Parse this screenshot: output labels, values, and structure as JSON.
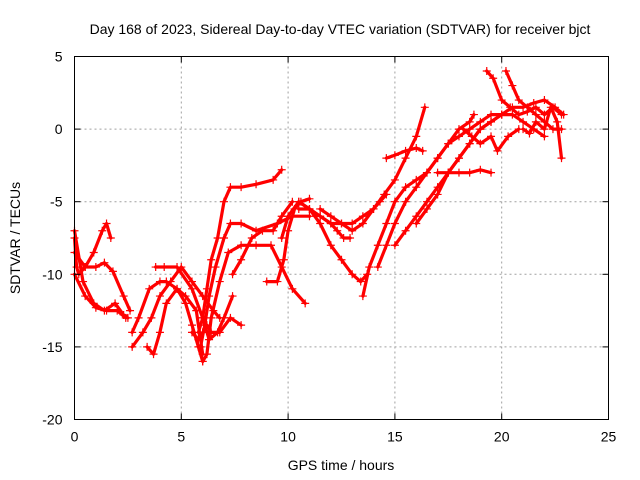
{
  "chart_data": {
    "type": "scatter",
    "title": "Day 168 of 2023, Sidereal Day-to-day VTEC variation (SDTVAR) for receiver bjct",
    "xlabel": "GPS time / hours",
    "ylabel": "SDTVAR / TECUs",
    "xlim": [
      0,
      25
    ],
    "ylim": [
      -20,
      5
    ],
    "xticks": [
      0,
      5,
      10,
      15,
      20,
      25
    ],
    "yticks": [
      5,
      0,
      -5,
      -10,
      -15,
      -20
    ],
    "xtick_labels": [
      "0",
      "5",
      "10",
      "15",
      "20",
      "25"
    ],
    "ytick_labels": [
      "5",
      "0",
      "-5",
      "-10",
      "-15",
      "-20"
    ],
    "grid": true,
    "legend": "none",
    "marker": "plus",
    "color": "#ff0000",
    "series": [
      {
        "x": [
          0.0,
          0.4,
          0.9,
          1.4,
          1.9,
          2.3,
          2.5
        ],
        "y": [
          -7,
          -10.5,
          -12,
          -12.5,
          -12,
          -12.8,
          -13
        ]
      },
      {
        "x": [
          0.0,
          0.5,
          1.0,
          1.4,
          1.8,
          2.3,
          2.6
        ],
        "y": [
          -8.5,
          -9.5,
          -9.5,
          -9.2,
          -9.8,
          -11.5,
          -12.5
        ]
      },
      {
        "x": [
          0.0,
          0.1,
          0.2,
          0.5,
          0.9,
          1.3,
          1.5,
          1.7
        ],
        "y": [
          -7.5,
          -9.5,
          -10,
          -9.5,
          -8.5,
          -7,
          -6.5,
          -7.5
        ]
      },
      {
        "x": [
          0.0,
          0.5,
          1.0,
          1.5,
          2.0,
          2.4
        ],
        "y": [
          -10,
          -11.5,
          -12.3,
          -12.5,
          -12.5,
          -13
        ]
      },
      {
        "x": [
          2.7,
          3.2,
          3.6,
          4.0,
          4.5,
          5.0,
          5.5,
          6.0,
          6.5,
          6.8
        ],
        "y": [
          -15,
          -14,
          -13,
          -11.5,
          -10.5,
          -9.5,
          -10.5,
          -11.5,
          -12.5,
          -13
        ]
      },
      {
        "x": [
          2.7,
          3.0,
          3.5,
          4.0,
          4.3,
          4.8,
          5.2,
          5.5,
          5.8,
          6.0
        ],
        "y": [
          -14,
          -13,
          -11,
          -10.5,
          -10.5,
          -11,
          -12,
          -13.5,
          -15,
          -16
        ]
      },
      {
        "x": [
          3.4,
          3.7,
          4.0,
          4.3,
          4.8,
          5.2,
          5.7,
          6.0
        ],
        "y": [
          -15,
          -15.5,
          -14,
          -12,
          -11,
          -11.5,
          -12.5,
          -15.5
        ]
      },
      {
        "x": [
          3.8,
          4.2,
          4.8,
          5.5,
          6.0,
          6.3,
          6.7,
          7.0,
          7.4
        ],
        "y": [
          -9.5,
          -9.5,
          -9.5,
          -11,
          -13,
          -14.5,
          -14,
          -13,
          -11.5
        ]
      },
      {
        "x": [
          5.5,
          5.8,
          6.0,
          6.2,
          6.4,
          6.8,
          7.3,
          7.8
        ],
        "y": [
          -14,
          -14.5,
          -14,
          -13.5,
          -14,
          -14,
          -13,
          -13.5
        ]
      },
      {
        "x": [
          5.8,
          6.0,
          6.2,
          6.4,
          6.7,
          7.0,
          7.3,
          7.8,
          8.5,
          9.3,
          9.7
        ],
        "y": [
          -14,
          -13,
          -11,
          -9,
          -7.5,
          -5,
          -4,
          -4,
          -3.8,
          -3.5,
          -2.8
        ]
      },
      {
        "x": [
          5.9,
          6.1,
          6.3,
          6.6,
          7.0,
          7.3,
          7.8,
          8.5,
          9.5,
          10.2,
          11.0
        ],
        "y": [
          -15,
          -13.5,
          -11.5,
          -9.5,
          -7.5,
          -6.5,
          -6.5,
          -7,
          -6.5,
          -6,
          -6
        ]
      },
      {
        "x": [
          6.0,
          6.2,
          6.4,
          6.8,
          7.2,
          7.8,
          8.5,
          9.2,
          9.7,
          10.2,
          10.8
        ],
        "y": [
          -16,
          -15.5,
          -13,
          -10.5,
          -8.5,
          -8,
          -8,
          -8,
          -9.5,
          -11,
          -12
        ]
      },
      {
        "x": [
          7.4,
          7.8,
          8.3,
          8.8,
          9.3,
          9.7,
          10.2
        ],
        "y": [
          -10,
          -9,
          -7.5,
          -7,
          -7,
          -6,
          -5
        ]
      },
      {
        "x": [
          9.0,
          9.5,
          9.8,
          10.0,
          10.3,
          10.6,
          11.0
        ],
        "y": [
          -10.5,
          -10.5,
          -9,
          -7,
          -5.5,
          -5,
          -4.8
        ]
      },
      {
        "x": [
          9.7,
          10.0,
          10.5,
          11.0,
          11.5,
          12.0,
          12.3,
          12.6,
          12.9
        ],
        "y": [
          -7.5,
          -6,
          -5,
          -5.5,
          -6,
          -6.5,
          -7,
          -7.5,
          -7.5
        ]
      },
      {
        "x": [
          10.5,
          11.0,
          11.5,
          12.0,
          12.5,
          13.0,
          13.4,
          13.7
        ],
        "y": [
          -5.5,
          -5.5,
          -6.5,
          -8,
          -9,
          -10,
          -10.5,
          -10
        ]
      },
      {
        "x": [
          10.5,
          11.0,
          11.5,
          12.0,
          12.5,
          13.0,
          13.5,
          14.0,
          14.3,
          14.6
        ],
        "y": [
          -5,
          -5.5,
          -6,
          -6.5,
          -6.5,
          -6.5,
          -6,
          -5.5,
          -5,
          -4.5
        ]
      },
      {
        "x": [
          11.5,
          12.0,
          12.5,
          13.0,
          13.5,
          14.0,
          14.5,
          15.0,
          15.5,
          16.0,
          16.4
        ],
        "y": [
          -5.5,
          -6,
          -6.5,
          -7,
          -6.5,
          -5.5,
          -4.5,
          -3.5,
          -2,
          -0.5,
          1.5
        ]
      },
      {
        "x": [
          13.5,
          13.8,
          14.2,
          14.6,
          15.0,
          15.5,
          16.0,
          16.5,
          17.0,
          17.5,
          18.0,
          18.5,
          18.7
        ],
        "y": [
          -11.5,
          -9.5,
          -8,
          -6.5,
          -5,
          -4,
          -3.5,
          -3,
          -2,
          -1,
          0,
          0.5,
          1
        ]
      },
      {
        "x": [
          14.2,
          14.6,
          15.0,
          15.5,
          16.0,
          16.5,
          17.0,
          17.5,
          18.0,
          18.5,
          19.0,
          19.5,
          20.0
        ],
        "y": [
          -9.5,
          -8,
          -6.5,
          -5,
          -4,
          -3,
          -2,
          -1,
          -0.5,
          0,
          0.5,
          1,
          1
        ]
      },
      {
        "x": [
          14.6,
          15.0,
          15.5,
          16.0,
          16.3
        ],
        "y": [
          -2,
          -1.8,
          -1.5,
          -1.3,
          -1.5
        ]
      },
      {
        "x": [
          15.0,
          15.5,
          16.0,
          16.5,
          17.0,
          17.5,
          18.0,
          18.5,
          19.0,
          19.5,
          20.0,
          20.5,
          21.0,
          21.5,
          22.0,
          22.5,
          22.9
        ],
        "y": [
          -8,
          -7,
          -6,
          -5,
          -4,
          -3,
          -2,
          -1,
          0,
          0.5,
          1,
          1.5,
          1.5,
          1.8,
          2,
          1.5,
          1
        ]
      },
      {
        "x": [
          16.0,
          16.5,
          17.0,
          17.5,
          18.0,
          18.5,
          19.0,
          19.5,
          20.0,
          20.5,
          21.0,
          21.5,
          22.0
        ],
        "y": [
          -6.5,
          -5.5,
          -4.5,
          -3,
          -2,
          -1,
          0,
          0.5,
          1,
          1,
          0.5,
          0,
          -0.5
        ]
      },
      {
        "x": [
          17.0,
          17.5,
          18.0,
          18.5,
          19.0,
          19.5
        ],
        "y": [
          -3,
          -3,
          -3,
          -3,
          -2.8,
          -3
        ]
      },
      {
        "x": [
          18.2,
          18.6,
          19.0,
          19.5,
          19.8,
          20.3,
          20.8
        ],
        "y": [
          0,
          -0.5,
          -1,
          -0.5,
          -1.5,
          -0.5,
          0
        ]
      },
      {
        "x": [
          19.3,
          19.6,
          20.0,
          20.4,
          20.8,
          21.2,
          21.6,
          22.0,
          22.4,
          22.8
        ],
        "y": [
          4,
          3.5,
          2,
          1.5,
          1,
          1.2,
          1.5,
          1,
          1.5,
          1
        ]
      },
      {
        "x": [
          20.2,
          20.5,
          20.8,
          21.2,
          21.6,
          22.0,
          22.4,
          22.8
        ],
        "y": [
          4,
          3,
          2,
          1.5,
          1,
          0.5,
          0,
          0
        ]
      },
      {
        "x": [
          21.0,
          21.3,
          21.6,
          22.0,
          22.3,
          22.6,
          22.8
        ],
        "y": [
          0,
          -0.3,
          0.5,
          0,
          1.5,
          0.5,
          -2
        ]
      }
    ]
  }
}
